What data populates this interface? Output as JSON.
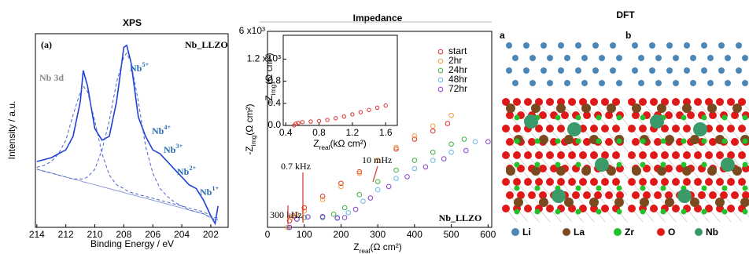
{
  "chart_data": [
    {
      "type": "line",
      "title": "XPS",
      "x_label": "Binding Energy / eV",
      "y_label": "Intensity / a.u.",
      "xlim": [
        214.1,
        200.8
      ],
      "xticks": [
        214,
        212,
        210,
        208,
        206,
        204,
        202
      ],
      "ylim": [
        0,
        100
      ],
      "x": [
        214,
        213.5,
        213,
        212.5,
        212,
        211.5,
        211,
        210.8,
        210.5,
        210,
        209.5,
        209,
        208.5,
        208,
        207.8,
        207.5,
        207,
        206.5,
        206,
        205.5,
        205,
        204.5,
        204,
        203.5,
        203,
        202.5,
        202,
        201.7,
        201.5
      ],
      "series": [
        {
          "color": "#1f3fd6",
          "dashed": false,
          "values": [
            34,
            35,
            36,
            38,
            40,
            47,
            65,
            81,
            73,
            51,
            45,
            47,
            65,
            93,
            94,
            85,
            57,
            47,
            40,
            38,
            34,
            30,
            26,
            22,
            20,
            14,
            6,
            2,
            11
          ]
        },
        {
          "color": "#8a9ad8",
          "dashed": false,
          "values": [
            30,
            29,
            28,
            27,
            26,
            25,
            24,
            23.5,
            23,
            22,
            21,
            20,
            19,
            18,
            17.5,
            17,
            16,
            15,
            14,
            13,
            12,
            11,
            10,
            9,
            8,
            7,
            5,
            4,
            4
          ]
        },
        {
          "color": "#4a62c8",
          "dashed": true,
          "values": [
            30,
            29,
            28,
            27,
            26,
            25,
            25,
            25,
            26,
            30,
            40,
            55,
            75,
            88,
            90,
            85,
            65,
            42,
            28,
            20,
            16,
            13,
            11,
            9,
            8,
            7,
            5,
            4,
            4
          ]
        },
        {
          "color": "#4a62c8",
          "dashed": true,
          "values": [
            31,
            32,
            34,
            38,
            45,
            58,
            70,
            73,
            70,
            55,
            38,
            27,
            22,
            20,
            19,
            18,
            17,
            16,
            15,
            14,
            13,
            12,
            11,
            10,
            9,
            8,
            6,
            5,
            5
          ]
        }
      ],
      "annotations": [
        {
          "base": "(a)"
        },
        {
          "base": "Nb_LLZO"
        },
        {
          "base": "Nb 3d"
        },
        {
          "base": "Nb",
          "sup": "5+"
        },
        {
          "base": "Nb",
          "sup": "4+"
        },
        {
          "base": "Nb",
          "sup": "3+"
        },
        {
          "base": "Nb",
          "sup": "2+"
        },
        {
          "base": "Nb",
          "sup": "1+"
        }
      ]
    },
    {
      "type": "scatter",
      "title": "Impedance",
      "x_label": {
        "base": "Z",
        "sub": "real",
        "rest": "(Ω cm²)"
      },
      "y_label": {
        "base": "-Z",
        "sub": "img",
        "rest": "(Ω cm²)"
      },
      "xlim": [
        0,
        610
      ],
      "xticks": [
        0,
        100,
        200,
        300,
        400,
        500,
        600
      ],
      "ylim": [
        0,
        6000
      ],
      "yticks": [
        {
          "value": 6000,
          "label": "6 x10³"
        }
      ],
      "series": [
        {
          "name": "start",
          "color": "#d9302c",
          "x": [
            55,
            60,
            70,
            100,
            150,
            200,
            250,
            300,
            350,
            400,
            450,
            490
          ],
          "values": [
            0,
            200,
            350,
            600,
            950,
            1350,
            1700,
            2050,
            2400,
            2700,
            2950,
            3180
          ]
        },
        {
          "name": "2hr",
          "color": "#f0a040",
          "x": [
            55,
            65,
            80,
            100,
            150,
            200,
            250,
            300,
            350,
            400,
            450,
            500
          ],
          "values": [
            0,
            300,
            400,
            500,
            850,
            1250,
            1650,
            2050,
            2450,
            2800,
            3100,
            3430
          ]
        },
        {
          "name": "24hr",
          "color": "#3cb043",
          "x": [
            60,
            80,
            100,
            150,
            180,
            210,
            250,
            300,
            350,
            400,
            450,
            500,
            535
          ],
          "values": [
            0,
            250,
            300,
            300,
            400,
            600,
            1000,
            1400,
            1750,
            2050,
            2300,
            2550,
            2700
          ]
        },
        {
          "name": "48hr",
          "color": "#6ab8e8",
          "x": [
            60,
            80,
            110,
            150,
            190,
            220,
            260,
            300,
            350,
            400,
            450,
            500,
            565
          ],
          "values": [
            0,
            250,
            320,
            320,
            300,
            450,
            800,
            1150,
            1500,
            1800,
            2050,
            2300,
            2620
          ]
        },
        {
          "name": "72hr",
          "color": "#8a3fd0",
          "x": [
            60,
            80,
            110,
            150,
            190,
            210,
            240,
            280,
            330,
            380,
            430,
            480,
            540,
            600
          ],
          "values": [
            0,
            250,
            320,
            330,
            280,
            300,
            550,
            900,
            1250,
            1550,
            1850,
            2100,
            2350,
            2620
          ]
        }
      ],
      "annotations": [
        {
          "base": "300 kHz"
        },
        {
          "base": "0.7 kHz"
        },
        {
          "base": "10 mHz"
        },
        {
          "base": "Nb_LLZO"
        }
      ]
    },
    {
      "type": "scatter",
      "x_label": {
        "base": "Z",
        "sub": "real",
        "rest": "(kΩ cm²)"
      },
      "y_label": {
        "base": "-Z",
        "sub": "img",
        "rest": "(Ω cm²)"
      },
      "xlim": [
        0.37,
        1.74
      ],
      "xticks": [
        0.4,
        0.8,
        1.2,
        1.6
      ],
      "ylim": [
        0,
        1630
      ],
      "yticks": [
        {
          "value": 0,
          "label": "0.0"
        },
        {
          "value": 400,
          "label": "0.4"
        },
        {
          "value": 800,
          "label": "0.8"
        },
        {
          "value": 1200,
          "label": "1.2 x10³"
        }
      ],
      "series": [
        {
          "color": "#d9302c",
          "x": [
            0.5,
            0.52,
            0.55,
            0.6,
            0.7,
            0.8,
            0.9,
            1.0,
            1.1,
            1.2,
            1.3,
            1.4,
            1.5,
            1.6
          ],
          "values": [
            0,
            30,
            45,
            60,
            70,
            80,
            100,
            130,
            160,
            200,
            240,
            280,
            320,
            360
          ]
        }
      ]
    }
  ],
  "dft": {
    "title": "DFT",
    "panels": [
      "a",
      "b"
    ],
    "legend": [
      {
        "name": "Li",
        "color": "#4a86b8"
      },
      {
        "name": "La",
        "color": "#7a4a1e"
      },
      {
        "name": "Zr",
        "color": "#22c02a"
      },
      {
        "name": "O",
        "color": "#e01818"
      },
      {
        "name": "Nb",
        "color": "#3a9a6a"
      }
    ]
  }
}
